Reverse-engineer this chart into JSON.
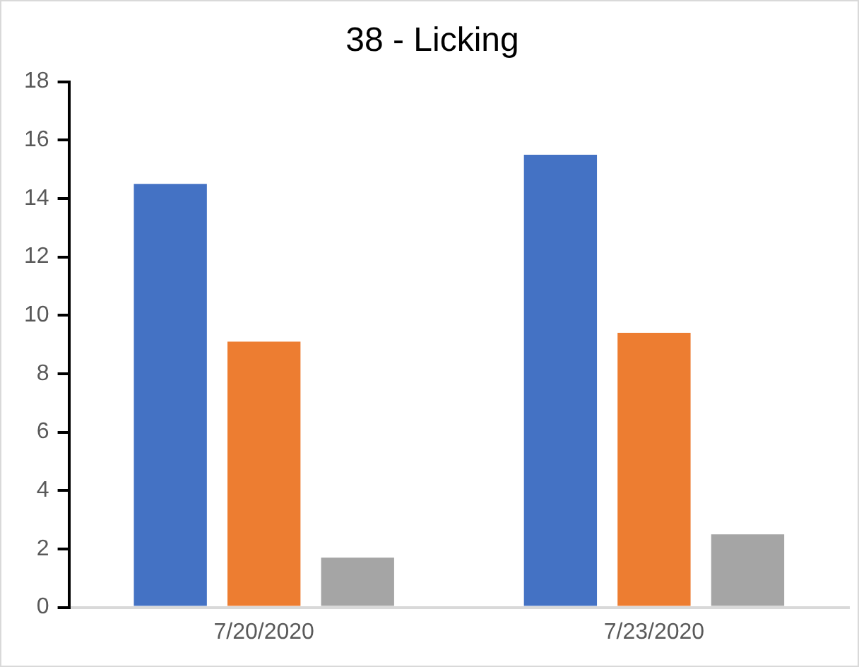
{
  "chart_data": {
    "type": "bar",
    "title": "38 - Licking",
    "categories": [
      "7/20/2020",
      "7/23/2020"
    ],
    "series": [
      {
        "color": "#4472c4",
        "values": [
          14.5,
          15.5
        ]
      },
      {
        "color": "#ed7d31",
        "values": [
          9.1,
          9.4
        ]
      },
      {
        "color": "#a5a5a5",
        "values": [
          1.7,
          2.5
        ]
      }
    ],
    "ylim": [
      0,
      18
    ],
    "yticks": [
      0,
      2,
      4,
      6,
      8,
      10,
      12,
      14,
      16,
      18
    ],
    "grid": false,
    "legend": false
  }
}
